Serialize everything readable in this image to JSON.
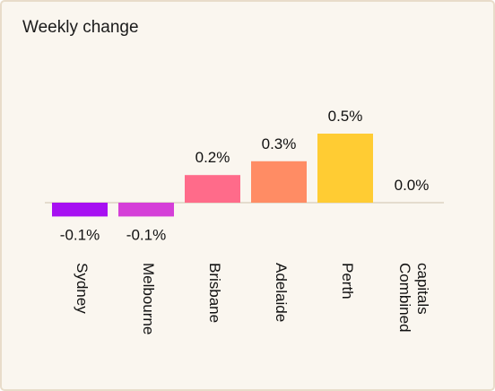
{
  "chart_data": {
    "type": "bar",
    "title": "Weekly change",
    "categories": [
      "Sydney",
      "Melbourne",
      "Brisbane",
      "Adelaide",
      "Perth",
      "Combined capitals"
    ],
    "values": [
      -0.1,
      -0.1,
      0.2,
      0.3,
      0.5,
      0.0
    ],
    "value_labels": [
      "-0.1%",
      "-0.1%",
      "0.2%",
      "0.3%",
      "0.5%",
      "0.0%"
    ],
    "colors": [
      "#a710f2",
      "#d53fd8",
      "#ff6b8a",
      "#ff8c64",
      "#ffcc33",
      "#ffcc33"
    ]
  }
}
